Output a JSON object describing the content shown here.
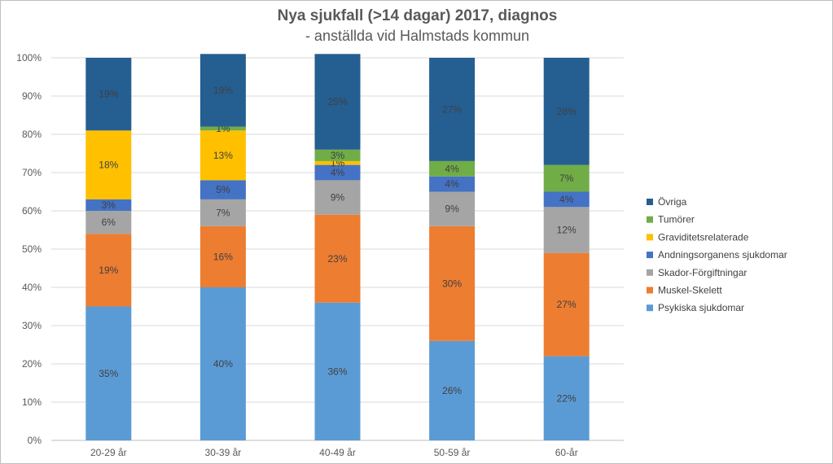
{
  "chart_data": {
    "type": "bar",
    "stacked": true,
    "title": "Nya sjukfall (>14 dagar) 2017, diagnos",
    "subtitle": "- anställda vid Halmstads kommun",
    "categories": [
      "20-29 år",
      "30-39 år",
      "40-49 år",
      "50-59 år",
      "60-år"
    ],
    "ylim": [
      0,
      100
    ],
    "yticks": [
      "0%",
      "10%",
      "20%",
      "30%",
      "40%",
      "50%",
      "60%",
      "70%",
      "80%",
      "90%",
      "100%"
    ],
    "legend_position": "right",
    "grid": true,
    "series": [
      {
        "name": "Psykiska sjukdomar",
        "color": "#5b9bd5",
        "values": [
          35,
          40,
          36,
          26,
          22
        ],
        "labels": [
          "35%",
          "40%",
          "36%",
          "26%",
          "22%"
        ]
      },
      {
        "name": "Muskel-Skelett",
        "color": "#ed7d31",
        "values": [
          19,
          16,
          23,
          30,
          27
        ],
        "labels": [
          "19%",
          "16%",
          "23%",
          "30%",
          "27%"
        ]
      },
      {
        "name": "Skador-Förgiftningar",
        "color": "#a5a5a5",
        "values": [
          6,
          7,
          9,
          9,
          12
        ],
        "labels": [
          "6%",
          "7%",
          "9%",
          "9%",
          "12%"
        ]
      },
      {
        "name": "Andningsorganens sjukdomar",
        "color": "#4472c4",
        "values": [
          3,
          5,
          4,
          4,
          4
        ],
        "labels": [
          "3%",
          "5%",
          "4%",
          "4%",
          "4%"
        ]
      },
      {
        "name": "Graviditetsrelaterade",
        "color": "#ffc000",
        "values": [
          18,
          13,
          1,
          0,
          0
        ],
        "labels": [
          "18%",
          "13%",
          "1%",
          "",
          ""
        ]
      },
      {
        "name": "Tumörer",
        "color": "#70ad47",
        "values": [
          0,
          1,
          3,
          4,
          7
        ],
        "labels": [
          "",
          "1%",
          "3%",
          "4%",
          "7%"
        ]
      },
      {
        "name": "Övriga",
        "color": "#255e91",
        "values": [
          19,
          19,
          25,
          27,
          28
        ],
        "labels": [
          "19%",
          "19%",
          "25%",
          "27%",
          "28%"
        ]
      }
    ]
  }
}
